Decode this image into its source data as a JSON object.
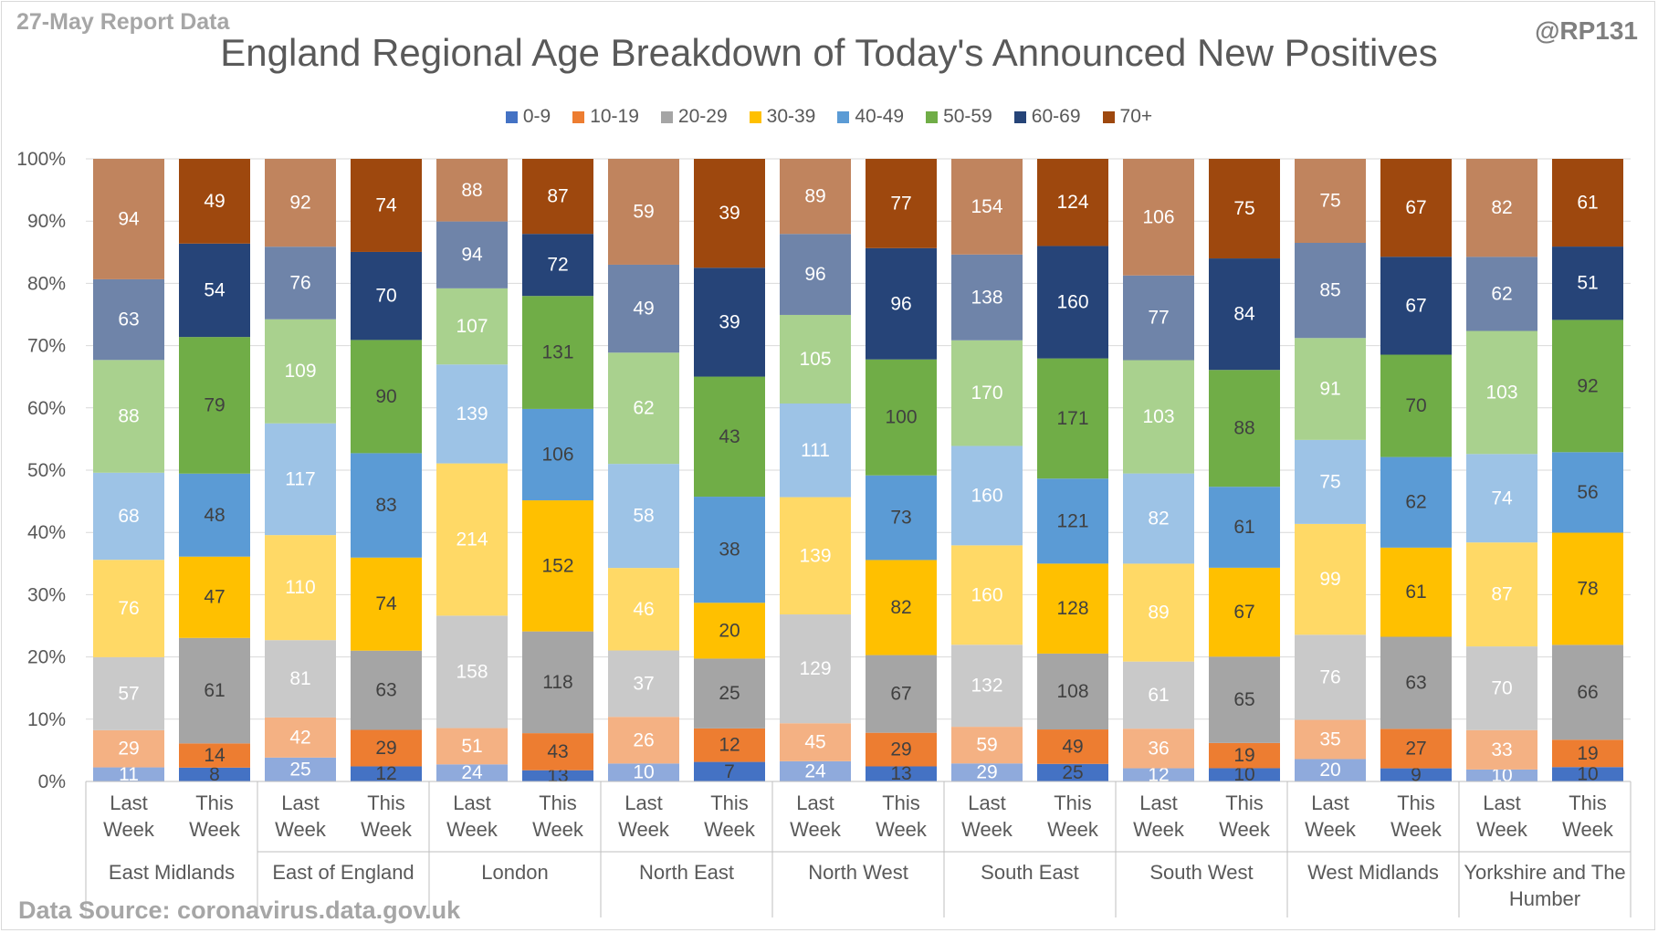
{
  "header": {
    "report_date": "27-May Report Data",
    "handle": "@RP131",
    "source": "Data Source: coronavirus.data.gov.uk"
  },
  "chart_data": {
    "type": "bar",
    "stacked": "percent",
    "title": "England Regional Age Breakdown of Today's Announced New Positives",
    "legend_position": "top",
    "grid": true,
    "ylim": [
      0,
      100
    ],
    "y_ticks": [
      "0%",
      "10%",
      "20%",
      "30%",
      "40%",
      "50%",
      "60%",
      "70%",
      "80%",
      "90%",
      "100%"
    ],
    "x_labels": [
      "Last Week",
      "This Week",
      "Last Week",
      "This Week",
      "Last Week",
      "This Week",
      "Last Week",
      "This Week",
      "Last Week",
      "This Week",
      "Last Week",
      "This Week",
      "Last Week",
      "This Week",
      "Last Week",
      "This Week",
      "Last Week",
      "This Week"
    ],
    "groups": [
      "East Midlands",
      "East of England",
      "London",
      "North East",
      "North West",
      "South East",
      "South West",
      "West Midlands",
      "Yorkshire and The Humber"
    ],
    "series": [
      {
        "name": "0-9",
        "color": "#4472c4",
        "light": "#8faadc",
        "values": [
          11,
          8,
          25,
          12,
          24,
          13,
          10,
          7,
          24,
          13,
          29,
          25,
          12,
          10,
          20,
          9,
          10,
          10
        ]
      },
      {
        "name": "10-19",
        "color": "#ed7d31",
        "light": "#f4b183",
        "values": [
          29,
          14,
          42,
          29,
          51,
          43,
          26,
          12,
          45,
          29,
          59,
          49,
          36,
          19,
          35,
          27,
          33,
          19
        ]
      },
      {
        "name": "20-29",
        "color": "#a5a5a5",
        "light": "#c9c9c9",
        "values": [
          57,
          61,
          81,
          63,
          158,
          118,
          37,
          25,
          129,
          67,
          132,
          108,
          61,
          65,
          76,
          63,
          70,
          66
        ]
      },
      {
        "name": "30-39",
        "color": "#ffc000",
        "light": "#ffd966",
        "values": [
          76,
          47,
          110,
          74,
          214,
          152,
          46,
          20,
          139,
          82,
          160,
          128,
          89,
          67,
          99,
          61,
          87,
          78
        ]
      },
      {
        "name": "40-49",
        "color": "#5b9bd5",
        "light": "#9dc3e6",
        "values": [
          68,
          48,
          117,
          83,
          139,
          106,
          58,
          38,
          111,
          73,
          160,
          121,
          82,
          61,
          75,
          62,
          74,
          56
        ]
      },
      {
        "name": "50-59",
        "color": "#70ad47",
        "light": "#a9d18e",
        "values": [
          88,
          79,
          109,
          90,
          107,
          131,
          62,
          43,
          105,
          100,
          170,
          171,
          103,
          88,
          91,
          70,
          103,
          92
        ]
      },
      {
        "name": "60-69",
        "color": "#264478",
        "light": "#6f84a9",
        "values": [
          63,
          54,
          76,
          70,
          94,
          72,
          49,
          39,
          96,
          96,
          138,
          160,
          77,
          84,
          85,
          67,
          62,
          51
        ]
      },
      {
        "name": "70+",
        "color": "#9e480e",
        "light": "#c0845e",
        "values": [
          94,
          49,
          92,
          74,
          88,
          87,
          59,
          39,
          89,
          77,
          154,
          124,
          106,
          75,
          75,
          67,
          82,
          61
        ]
      }
    ]
  }
}
